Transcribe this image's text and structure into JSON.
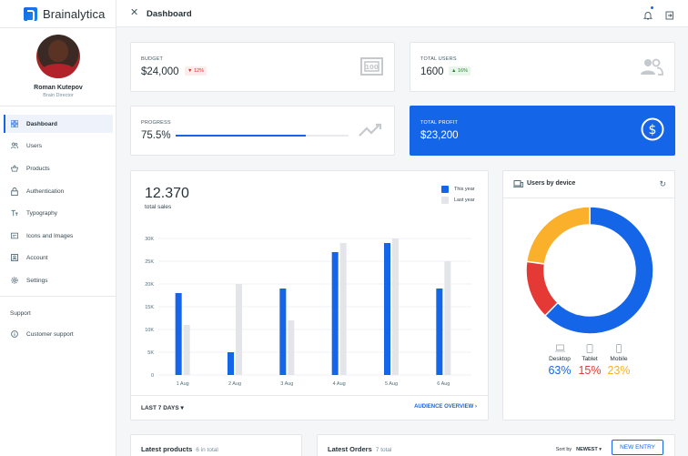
{
  "brand": {
    "name": "Brainalytica"
  },
  "user": {
    "name": "Roman Kutepov",
    "role": "Brain Director"
  },
  "nav": {
    "items": [
      {
        "label": "Dashboard",
        "icon": "dashboard-icon",
        "active": true
      },
      {
        "label": "Users",
        "icon": "users-icon"
      },
      {
        "label": "Products",
        "icon": "basket-icon"
      },
      {
        "label": "Authentication",
        "icon": "lock-icon"
      },
      {
        "label": "Typography",
        "icon": "text-fields-icon"
      },
      {
        "label": "Icons and Images",
        "icon": "image-icon"
      },
      {
        "label": "Account",
        "icon": "account-box-icon"
      },
      {
        "label": "Settings",
        "icon": "settings-icon"
      }
    ],
    "support_label": "Support",
    "support_item": {
      "label": "Customer support",
      "icon": "info-icon"
    }
  },
  "header": {
    "title": "Dashboard"
  },
  "stats": {
    "budget": {
      "label": "BUDGET",
      "value": "$24,000",
      "delta": "12%"
    },
    "users": {
      "label": "TOTAL USERS",
      "value": "1600",
      "delta": "16%"
    },
    "progress": {
      "label": "PROGRESS",
      "value": "75.5%",
      "fraction": 0.755
    },
    "profit": {
      "label": "TOTAL PROFIT",
      "value": "$23,200"
    }
  },
  "sales": {
    "total": "12.370",
    "subtitle": "total sales",
    "range_label": "LAST 7 DAYS",
    "overview_label": "AUDIENCE OVERVIEW"
  },
  "chart_data": {
    "type": "bar",
    "categories": [
      "1 Aug",
      "2 Aug",
      "3 Aug",
      "4 Aug",
      "5 Aug",
      "6 Aug"
    ],
    "series": [
      {
        "name": "This year",
        "color": "#1565e8",
        "values": [
          18,
          5,
          19,
          27,
          29,
          19
        ]
      },
      {
        "name": "Last year",
        "color": "#e3e5e8",
        "values": [
          11,
          20,
          12,
          29,
          30,
          25
        ]
      }
    ],
    "yticks": [
      "0",
      "5K",
      "10K",
      "15K",
      "20K",
      "25K",
      "30K"
    ],
    "ylim": [
      0,
      30
    ],
    "grid": true,
    "legend_position": "top-right"
  },
  "devices": {
    "title": "Users by device",
    "chart_data": {
      "type": "pie",
      "labels": [
        "Desktop",
        "Tablet",
        "Mobile"
      ],
      "values": [
        63,
        15,
        23
      ],
      "colors": [
        "#1565e8",
        "#e53935",
        "#fbb02c"
      ]
    },
    "items": [
      {
        "name": "Desktop",
        "value": "63%",
        "color": "#1565e8"
      },
      {
        "name": "Tablet",
        "value": "15%",
        "color": "#e53935"
      },
      {
        "name": "Mobile",
        "value": "23%",
        "color": "#fbb02c"
      }
    ]
  },
  "products": {
    "title": "Latest products",
    "count": "6 in total"
  },
  "orders": {
    "title": "Latest Orders",
    "count": "7 total",
    "sort_label": "Sort by",
    "sort_value": "NEWEST",
    "new_label": "NEW ENTRY"
  }
}
